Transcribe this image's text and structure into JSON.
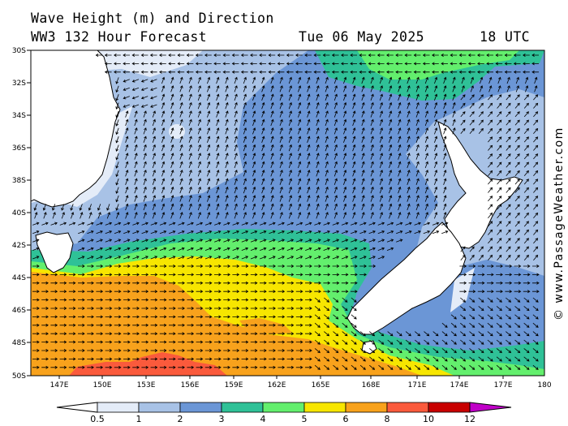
{
  "header": {
    "title_line1": "Wave Height (m) and Direction",
    "title_line2": "WW3 132 Hour Forecast",
    "date": "Tue 06 May 2025",
    "time": "18 UTC"
  },
  "axes": {
    "lat_labels": [
      "30S",
      "32S",
      "34S",
      "36S",
      "38S",
      "40S",
      "42S",
      "44S",
      "46S",
      "48S",
      "50S"
    ],
    "lon_labels": [
      "147E",
      "150E",
      "153E",
      "156E",
      "159E",
      "162E",
      "165E",
      "168E",
      "171E",
      "174E",
      "177E",
      "180"
    ]
  },
  "legend": {
    "values": [
      "0.5",
      "1",
      "2",
      "3",
      "4",
      "5",
      "6",
      "8",
      "10",
      "12"
    ],
    "colors": [
      "#e4ecf8",
      "#a8c2e6",
      "#6b96d6",
      "#2fc197",
      "#63ef6d",
      "#f7e600",
      "#f8a21c",
      "#fa5a3c",
      "#c80000",
      "#c000c8"
    ]
  },
  "credit": "© www.PassageWeather.com",
  "colors": {
    "land": "#ffffff",
    "coast": "#000000",
    "arrow": "#000000"
  }
}
